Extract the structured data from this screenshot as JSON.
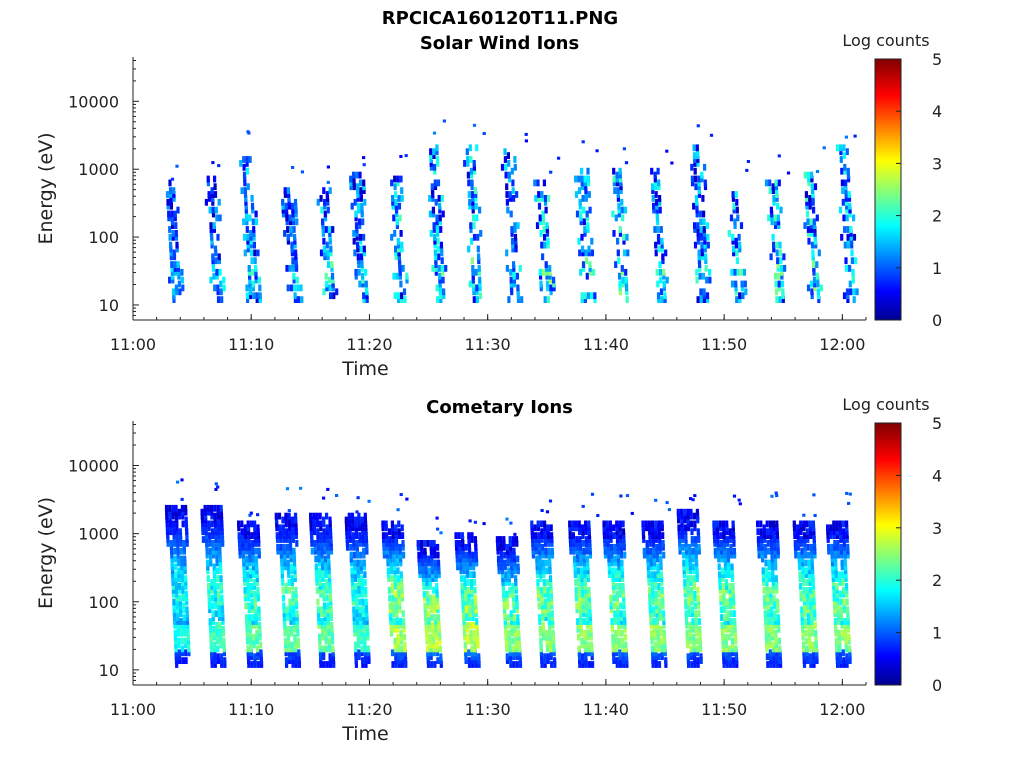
{
  "figure_title": "RPCICA160120T11.PNG",
  "chart_data": [
    {
      "type": "heatmap",
      "title": "Solar Wind Ions",
      "xlabel": "Time",
      "ylabel": "Energy (eV)",
      "x_ticks": [
        "11:00",
        "11:10",
        "11:20",
        "11:30",
        "11:40",
        "11:50",
        "12:00"
      ],
      "x_tick_minutes": [
        0,
        10,
        20,
        30,
        40,
        50,
        60
      ],
      "xlim_minutes": [
        0,
        62
      ],
      "y_scale": "log",
      "y_ticks": [
        "10",
        "100",
        "1000",
        "10000"
      ],
      "y_tick_values": [
        10,
        100,
        1000,
        10000
      ],
      "ylim": [
        6,
        45000
      ],
      "colorbar": {
        "label": "Log counts",
        "ticks": [
          "0",
          "1",
          "2",
          "3",
          "4",
          "5"
        ],
        "range": [
          0,
          5
        ],
        "colormap": "jet"
      },
      "sweep_minutes": [
        3,
        6.5,
        9.5,
        13,
        16,
        18.8,
        22,
        25.3,
        28.4,
        31.6,
        34.4,
        37.8,
        40.8,
        44,
        47.6,
        50.6,
        54,
        57,
        60
      ],
      "peak_energy_eV": [
        600,
        700,
        1400,
        500,
        500,
        800,
        700,
        2000,
        2000,
        1800,
        600,
        1000,
        900,
        1000,
        2000,
        500,
        600,
        800,
        2000
      ],
      "max_log_counts": [
        1.2,
        1.3,
        1.6,
        1.4,
        1.8,
        1.6,
        2.0,
        1.8,
        2.0,
        1.6,
        2.0,
        1.8,
        2.0,
        1.8,
        1.6,
        1.8,
        2.0,
        2.0,
        1.8
      ],
      "grid": false,
      "legend": "colorbar-right"
    },
    {
      "type": "heatmap",
      "title": "Cometary Ions",
      "xlabel": "Time",
      "ylabel": "Energy (eV)",
      "x_ticks": [
        "11:00",
        "11:10",
        "11:20",
        "11:30",
        "11:40",
        "11:50",
        "12:00"
      ],
      "x_tick_minutes": [
        0,
        10,
        20,
        30,
        40,
        50,
        60
      ],
      "xlim_minutes": [
        0,
        62
      ],
      "y_scale": "log",
      "y_ticks": [
        "10",
        "100",
        "1000",
        "10000"
      ],
      "y_tick_values": [
        10,
        100,
        1000,
        10000
      ],
      "ylim": [
        6,
        45000
      ],
      "colorbar": {
        "label": "Log counts",
        "ticks": [
          "0",
          "1",
          "2",
          "3",
          "4",
          "5"
        ],
        "range": [
          0,
          5
        ],
        "colormap": "jet"
      },
      "sweep_minutes": [
        3.5,
        6.5,
        9.6,
        12.8,
        15.7,
        18.7,
        21.8,
        24.8,
        28,
        31.5,
        34.4,
        37.6,
        40.5,
        43.8,
        46.8,
        49.8,
        53.5,
        56.6,
        59.4
      ],
      "peak_energy_eV": [
        2500,
        2500,
        1500,
        1800,
        1800,
        1800,
        1500,
        700,
        900,
        800,
        1500,
        1500,
        1500,
        1500,
        2000,
        1500,
        1500,
        1500,
        1500
      ],
      "max_log_counts": [
        2.2,
        2.4,
        2.6,
        2.6,
        2.6,
        2.4,
        3.0,
        3.0,
        3.0,
        2.8,
        2.8,
        2.8,
        2.8,
        2.8,
        2.8,
        2.8,
        2.8,
        2.8,
        2.8
      ],
      "grid": false,
      "legend": "colorbar-right"
    }
  ]
}
